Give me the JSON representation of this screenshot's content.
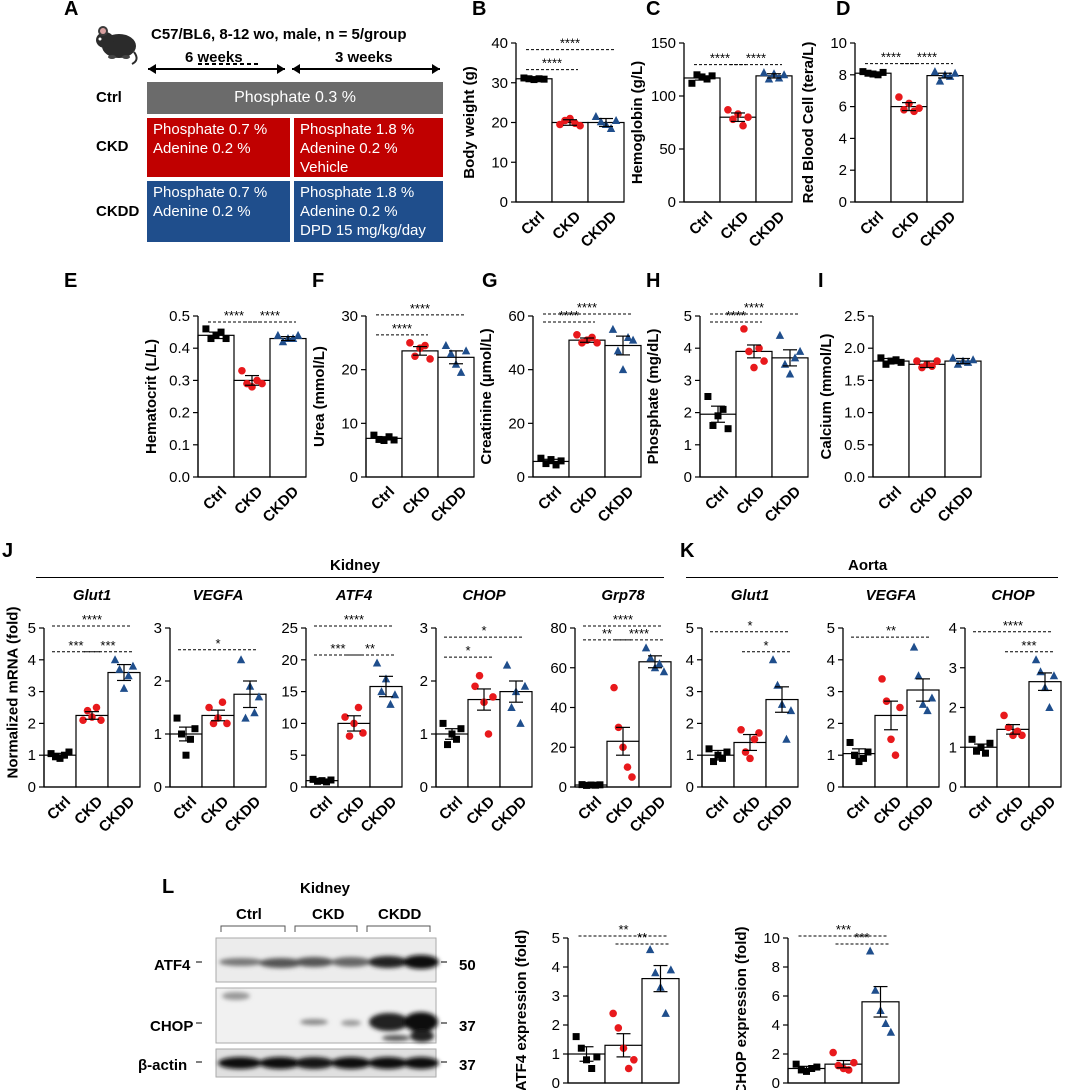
{
  "panel_letters": {
    "A": "A",
    "B": "B",
    "C": "C",
    "D": "D",
    "E": "E",
    "F": "F",
    "G": "G",
    "H": "H",
    "I": "I",
    "J": "J",
    "K": "K",
    "L": "L"
  },
  "design": {
    "header": "C57/BL6, 8-12 wo, male, n = 5/group",
    "period1": "6 weeks",
    "period2": "3 weeks",
    "rows": {
      "ctrl": "Ctrl",
      "ckd": "CKD",
      "ckdd": "CKDD"
    },
    "ctrl_text": "Phosphate 0.3 %",
    "ckd_p1": [
      "Phosphate 0.7 %",
      "Adenine 0.2 %"
    ],
    "ckd_p2": [
      "Phosphate 1.8 %",
      "Adenine 0.2 %",
      "Vehicle"
    ],
    "ckdd_p1": [
      "Phosphate 0.7 %",
      "Adenine 0.2 %"
    ],
    "ckdd_p2": [
      "Phosphate 1.8 %",
      "Adenine 0.2 %",
      "DPD 15 mg/kg/day"
    ],
    "colors": {
      "ctrl": "#6b6b6b",
      "ckd": "#c00000",
      "ckdd": "#1f4e8c"
    }
  },
  "group_labels": [
    "Ctrl",
    "CKD",
    "CKDD"
  ],
  "colors": {
    "ctrl": "#000000",
    "ckd": "#e8191c",
    "ckdd": "#1f4e8c"
  },
  "section_titles": {
    "kidney": "Kidney",
    "aorta": "Aorta",
    "j_ylabel": "Normalized mRNA (fold)"
  },
  "blot": {
    "title": "Kidney",
    "groups": [
      "Ctrl",
      "CKD",
      "CKDD"
    ],
    "bands": [
      {
        "name": "ATF4",
        "mw": "50"
      },
      {
        "name": "CHOP",
        "mw": "37"
      },
      {
        "name": "β-actin",
        "mw": "37"
      }
    ]
  },
  "chart_data": [
    {
      "id": "B",
      "type": "bar",
      "ylabel": "Body weight (g)",
      "ylim": [
        0,
        40
      ],
      "yticks": [
        0,
        10,
        20,
        30,
        40
      ],
      "categories": [
        "Ctrl",
        "CKD",
        "CKDD"
      ],
      "values": [
        31,
        20,
        20
      ],
      "sem": [
        0.3,
        0.7,
        1.0
      ],
      "points": [
        [
          31.2,
          31,
          30.8,
          31,
          30.9
        ],
        [
          19.5,
          20.5,
          21,
          19.8,
          19.2
        ],
        [
          21.5,
          20.2,
          19.5,
          18.5,
          20.5
        ]
      ],
      "sig": [
        {
          "a": 0,
          "b": 1,
          "label": "****"
        },
        {
          "a": 0,
          "b": 2,
          "label": "****"
        }
      ]
    },
    {
      "id": "C",
      "type": "bar",
      "ylabel": "Hemoglobin (g/L)",
      "ylim": [
        0,
        150
      ],
      "yticks": [
        0,
        50,
        100,
        150
      ],
      "categories": [
        "Ctrl",
        "CKD",
        "CKDD"
      ],
      "values": [
        117,
        80,
        119
      ],
      "sem": [
        2,
        4,
        2
      ],
      "points": [
        [
          112,
          120,
          118,
          116,
          119
        ],
        [
          87,
          78,
          83,
          72,
          80
        ],
        [
          122,
          116,
          121,
          117,
          120
        ]
      ],
      "sig": [
        {
          "a": 0,
          "b": 1,
          "label": "****"
        },
        {
          "a": 1,
          "b": 2,
          "label": "****"
        }
      ]
    },
    {
      "id": "D",
      "type": "bar",
      "ylabel": "Red Blood Cell (tera/L)",
      "ylim": [
        0,
        10
      ],
      "yticks": [
        0,
        2,
        4,
        6,
        8,
        10
      ],
      "categories": [
        "Ctrl",
        "CKD",
        "CKDD"
      ],
      "values": [
        8.1,
        6.0,
        7.95
      ],
      "sem": [
        0.07,
        0.25,
        0.15
      ],
      "points": [
        [
          8.2,
          8.1,
          8.05,
          8.0,
          8.15
        ],
        [
          6.6,
          5.8,
          6.2,
          5.7,
          5.9
        ],
        [
          8.2,
          7.6,
          8.0,
          7.9,
          8.1
        ]
      ],
      "sig": [
        {
          "a": 0,
          "b": 1,
          "label": "****"
        },
        {
          "a": 1,
          "b": 2,
          "label": "****"
        }
      ]
    },
    {
      "id": "E",
      "type": "bar",
      "ylabel": "Hematocrit (L/L)",
      "ylim": [
        0,
        0.5
      ],
      "yticks": [
        0.0,
        0.1,
        0.2,
        0.3,
        0.4,
        0.5
      ],
      "tickDecimals": 1,
      "categories": [
        "Ctrl",
        "CKD",
        "CKDD"
      ],
      "values": [
        0.44,
        0.3,
        0.43
      ],
      "sem": [
        0.01,
        0.015,
        0.006
      ],
      "points": [
        [
          0.46,
          0.43,
          0.44,
          0.45,
          0.43
        ],
        [
          0.33,
          0.29,
          0.28,
          0.3,
          0.29
        ],
        [
          0.44,
          0.42,
          0.43,
          0.43,
          0.44
        ]
      ],
      "sig": [
        {
          "a": 0,
          "b": 1,
          "label": "****"
        },
        {
          "a": 1,
          "b": 2,
          "label": "****"
        }
      ]
    },
    {
      "id": "F",
      "type": "bar",
      "ylabel": "Urea (mmol/L)",
      "ylim": [
        0,
        30
      ],
      "yticks": [
        0,
        10,
        20,
        30
      ],
      "categories": [
        "Ctrl",
        "CKD",
        "CKDD"
      ],
      "values": [
        7.2,
        23.5,
        22.3
      ],
      "sem": [
        0.3,
        0.8,
        1.2
      ],
      "points": [
        [
          7.8,
          7.0,
          6.8,
          7.5,
          6.9
        ],
        [
          25,
          22.5,
          24,
          24.5,
          22
        ],
        [
          24.5,
          23,
          21,
          19.5,
          23.5
        ]
      ],
      "sig": [
        {
          "a": 0,
          "b": 1,
          "label": "****"
        },
        {
          "a": 0,
          "b": 2,
          "label": "****"
        }
      ]
    },
    {
      "id": "G",
      "type": "bar",
      "ylabel": "Creatinine (µmol/L)",
      "ylim": [
        0,
        60
      ],
      "yticks": [
        0,
        20,
        40,
        60
      ],
      "categories": [
        "Ctrl",
        "CKD",
        "CKDD"
      ],
      "values": [
        5.8,
        51,
        49
      ],
      "sem": [
        0.8,
        0.8,
        3.5
      ],
      "points": [
        [
          7,
          5,
          6.5,
          4.5,
          6
        ],
        [
          53,
          50,
          51,
          52,
          50
        ],
        [
          55,
          47,
          40,
          52,
          51
        ]
      ],
      "sig": [
        {
          "a": 0,
          "b": 1,
          "label": "****"
        },
        {
          "a": 0,
          "b": 2,
          "label": "****"
        }
      ]
    },
    {
      "id": "H",
      "type": "bar",
      "ylabel": "Phosphate (mg/dL)",
      "ylim": [
        0,
        5
      ],
      "yticks": [
        0,
        1,
        2,
        3,
        4,
        5
      ],
      "categories": [
        "Ctrl",
        "CKD",
        "CKDD"
      ],
      "values": [
        1.95,
        3.9,
        3.7
      ],
      "sem": [
        0.25,
        0.2,
        0.25
      ],
      "points": [
        [
          2.5,
          1.6,
          1.9,
          2.1,
          1.5
        ],
        [
          4.6,
          3.9,
          3.4,
          4.0,
          3.6
        ],
        [
          4.4,
          3.5,
          3.2,
          3.7,
          3.9
        ]
      ],
      "sig": [
        {
          "a": 0,
          "b": 1,
          "label": "****"
        },
        {
          "a": 0,
          "b": 2,
          "label": "****"
        }
      ]
    },
    {
      "id": "I",
      "type": "bar",
      "ylabel": "Calcium (mmol/L)",
      "ylim": [
        0,
        2.5
      ],
      "yticks": [
        0.0,
        0.5,
        1.0,
        1.5,
        2.0,
        2.5
      ],
      "tickDecimals": 1,
      "categories": [
        "Ctrl",
        "CKD",
        "CKDD"
      ],
      "values": [
        1.8,
        1.75,
        1.8
      ],
      "sem": [
        0.04,
        0.05,
        0.04
      ],
      "points": [
        [
          1.85,
          1.75,
          1.8,
          1.82,
          1.78
        ],
        [
          1.8,
          1.7,
          1.75,
          1.72,
          1.8
        ],
        [
          1.85,
          1.75,
          1.8,
          1.78,
          1.82
        ]
      ],
      "sig": []
    },
    {
      "id": "J1",
      "type": "bar",
      "title": "Glut1",
      "ylim": [
        0,
        5
      ],
      "yticks": [
        0,
        1,
        2,
        3,
        4,
        5
      ],
      "categories": [
        "Ctrl",
        "CKD",
        "CKDD"
      ],
      "values": [
        1.0,
        2.25,
        3.6
      ],
      "sem": [
        0.06,
        0.12,
        0.25
      ],
      "points": [
        [
          1.05,
          0.95,
          0.9,
          1.0,
          1.1
        ],
        [
          2.1,
          2.4,
          2.2,
          2.5,
          2.1
        ],
        [
          4.0,
          3.7,
          3.1,
          3.5,
          3.8
        ]
      ],
      "sig": [
        {
          "a": 0,
          "b": 1,
          "label": "***"
        },
        {
          "a": 1,
          "b": 2,
          "label": "***"
        },
        {
          "a": 0,
          "b": 2,
          "label": "****"
        }
      ]
    },
    {
      "id": "J2",
      "type": "bar",
      "title": "VEGFA",
      "ylim": [
        0,
        3
      ],
      "yticks": [
        0,
        1,
        2,
        3
      ],
      "categories": [
        "Ctrl",
        "CKD",
        "CKDD"
      ],
      "values": [
        1.0,
        1.35,
        1.75
      ],
      "sem": [
        0.13,
        0.1,
        0.25
      ],
      "points": [
        [
          1.3,
          1.0,
          0.6,
          0.9,
          1.1
        ],
        [
          1.5,
          1.2,
          1.3,
          1.6,
          1.2
        ],
        [
          2.4,
          1.3,
          1.9,
          1.4,
          1.7
        ]
      ],
      "sig": [
        {
          "a": 0,
          "b": 2,
          "label": "*"
        }
      ]
    },
    {
      "id": "J3",
      "type": "bar",
      "title": "ATF4",
      "ylim": [
        0,
        25
      ],
      "yticks": [
        0,
        5,
        10,
        15,
        20,
        25
      ],
      "categories": [
        "Ctrl",
        "CKD",
        "CKDD"
      ],
      "values": [
        1.0,
        10,
        15.8
      ],
      "sem": [
        0.1,
        1.2,
        1.6
      ],
      "points": [
        [
          1.2,
          0.9,
          1.0,
          0.8,
          1.1
        ],
        [
          11,
          8,
          10,
          12.5,
          8.5
        ],
        [
          19.5,
          15,
          17,
          13,
          14.5
        ]
      ],
      "sig": [
        {
          "a": 0,
          "b": 1,
          "label": "***"
        },
        {
          "a": 1,
          "b": 2,
          "label": "**"
        },
        {
          "a": 0,
          "b": 2,
          "label": "****"
        }
      ]
    },
    {
      "id": "J4",
      "type": "bar",
      "title": "CHOP",
      "ylim": [
        0,
        3
      ],
      "yticks": [
        0,
        1,
        2,
        3
      ],
      "categories": [
        "Ctrl",
        "CKD",
        "CKDD"
      ],
      "values": [
        1.0,
        1.65,
        1.8
      ],
      "sem": [
        0.1,
        0.2,
        0.2
      ],
      "points": [
        [
          1.2,
          0.8,
          1.0,
          0.9,
          1.1
        ],
        [
          1.9,
          2.1,
          1.6,
          1.0,
          1.7
        ],
        [
          2.3,
          1.5,
          1.8,
          1.2,
          1.9
        ]
      ],
      "sig": [
        {
          "a": 0,
          "b": 1,
          "label": "*"
        },
        {
          "a": 0,
          "b": 2,
          "label": "*"
        }
      ]
    },
    {
      "id": "J5",
      "type": "bar",
      "title": "Grp78",
      "ylim": [
        0,
        80
      ],
      "yticks": [
        0,
        20,
        40,
        60,
        80
      ],
      "categories": [
        "Ctrl",
        "CKD",
        "CKDD"
      ],
      "values": [
        1.0,
        23,
        63
      ],
      "sem": [
        0.2,
        7,
        3
      ],
      "points": [
        [
          1.2,
          0.8,
          1.0,
          0.9,
          1.1
        ],
        [
          50,
          30,
          20,
          10,
          5
        ],
        [
          70,
          65,
          60,
          62,
          58
        ]
      ],
      "sig": [
        {
          "a": 0,
          "b": 1,
          "label": "**"
        },
        {
          "a": 1,
          "b": 2,
          "label": "****"
        },
        {
          "a": 0,
          "b": 2,
          "label": "****"
        }
      ]
    },
    {
      "id": "K1",
      "type": "bar",
      "title": "Glut1",
      "ylim": [
        0,
        5
      ],
      "yticks": [
        0,
        1,
        2,
        3,
        4,
        5
      ],
      "categories": [
        "Ctrl",
        "CKD",
        "CKDD"
      ],
      "values": [
        1.0,
        1.4,
        2.75
      ],
      "sem": [
        0.15,
        0.25,
        0.4
      ],
      "points": [
        [
          1.2,
          0.8,
          1.0,
          0.9,
          1.1
        ],
        [
          1.8,
          1.1,
          0.9,
          1.5,
          1.7
        ],
        [
          4.0,
          3.2,
          2.6,
          1.5,
          2.4
        ]
      ],
      "sig": [
        {
          "a": 1,
          "b": 2,
          "label": "*"
        },
        {
          "a": 0,
          "b": 2,
          "label": "*"
        }
      ]
    },
    {
      "id": "K2",
      "type": "bar",
      "title": "VEGFA",
      "ylim": [
        0,
        5
      ],
      "yticks": [
        0,
        1,
        2,
        3,
        4,
        5
      ],
      "categories": [
        "Ctrl",
        "CKD",
        "CKDD"
      ],
      "values": [
        1.05,
        2.25,
        3.05
      ],
      "sem": [
        0.15,
        0.45,
        0.35
      ],
      "points": [
        [
          1.4,
          1.0,
          0.8,
          0.9,
          1.1
        ],
        [
          3.4,
          2.7,
          1.5,
          1.0,
          2.5
        ],
        [
          4.4,
          3.5,
          2.6,
          2.4,
          2.8
        ]
      ],
      "sig": [
        {
          "a": 0,
          "b": 2,
          "label": "**"
        }
      ]
    },
    {
      "id": "K3",
      "type": "bar",
      "title": "CHOP",
      "ylim": [
        0,
        4
      ],
      "yticks": [
        0,
        1,
        2,
        3,
        4
      ],
      "categories": [
        "Ctrl",
        "CKD",
        "CKDD"
      ],
      "values": [
        1.0,
        1.45,
        2.65
      ],
      "sem": [
        0.08,
        0.12,
        0.22
      ],
      "points": [
        [
          1.2,
          0.9,
          1.0,
          0.85,
          1.1
        ],
        [
          1.8,
          1.5,
          1.3,
          1.4,
          1.3
        ],
        [
          3.2,
          2.9,
          2.5,
          2.0,
          2.8
        ]
      ],
      "sig": [
        {
          "a": 1,
          "b": 2,
          "label": "***"
        },
        {
          "a": 0,
          "b": 2,
          "label": "****"
        }
      ]
    },
    {
      "id": "L1",
      "type": "bar",
      "ylabel": "ATF4 expression (fold)",
      "ylim": [
        0,
        5
      ],
      "yticks": [
        0,
        1,
        2,
        3,
        4,
        5
      ],
      "categories": [
        "Ctrl",
        "CKD",
        "CKDD"
      ],
      "values": [
        1.0,
        1.3,
        3.6
      ],
      "sem": [
        0.25,
        0.4,
        0.45
      ],
      "points": [
        [
          1.6,
          1.2,
          0.8,
          0.5,
          0.9
        ],
        [
          2.4,
          1.9,
          1.2,
          0.5,
          0.8
        ],
        [
          4.6,
          3.8,
          3.3,
          2.4,
          3.9
        ]
      ],
      "sig": [
        {
          "a": 1,
          "b": 2,
          "label": "**"
        },
        {
          "a": 0,
          "b": 2,
          "label": "**"
        }
      ]
    },
    {
      "id": "L2",
      "type": "bar",
      "ylabel": "CHOP expression (fold)",
      "ylim": [
        0,
        10
      ],
      "yticks": [
        0,
        2,
        4,
        6,
        8,
        10
      ],
      "categories": [
        "Ctrl",
        "CKD",
        "CKDD"
      ],
      "values": [
        1.0,
        1.3,
        5.6
      ],
      "sem": [
        0.15,
        0.25,
        1.05
      ],
      "points": [
        [
          1.3,
          0.9,
          0.8,
          1.0,
          1.1
        ],
        [
          2.1,
          1.2,
          1.0,
          0.9,
          1.4
        ],
        [
          9.1,
          6.4,
          5.0,
          4.1,
          3.5
        ]
      ],
      "sig": [
        {
          "a": 1,
          "b": 2,
          "label": "***"
        },
        {
          "a": 0,
          "b": 2,
          "label": "***"
        }
      ]
    }
  ]
}
